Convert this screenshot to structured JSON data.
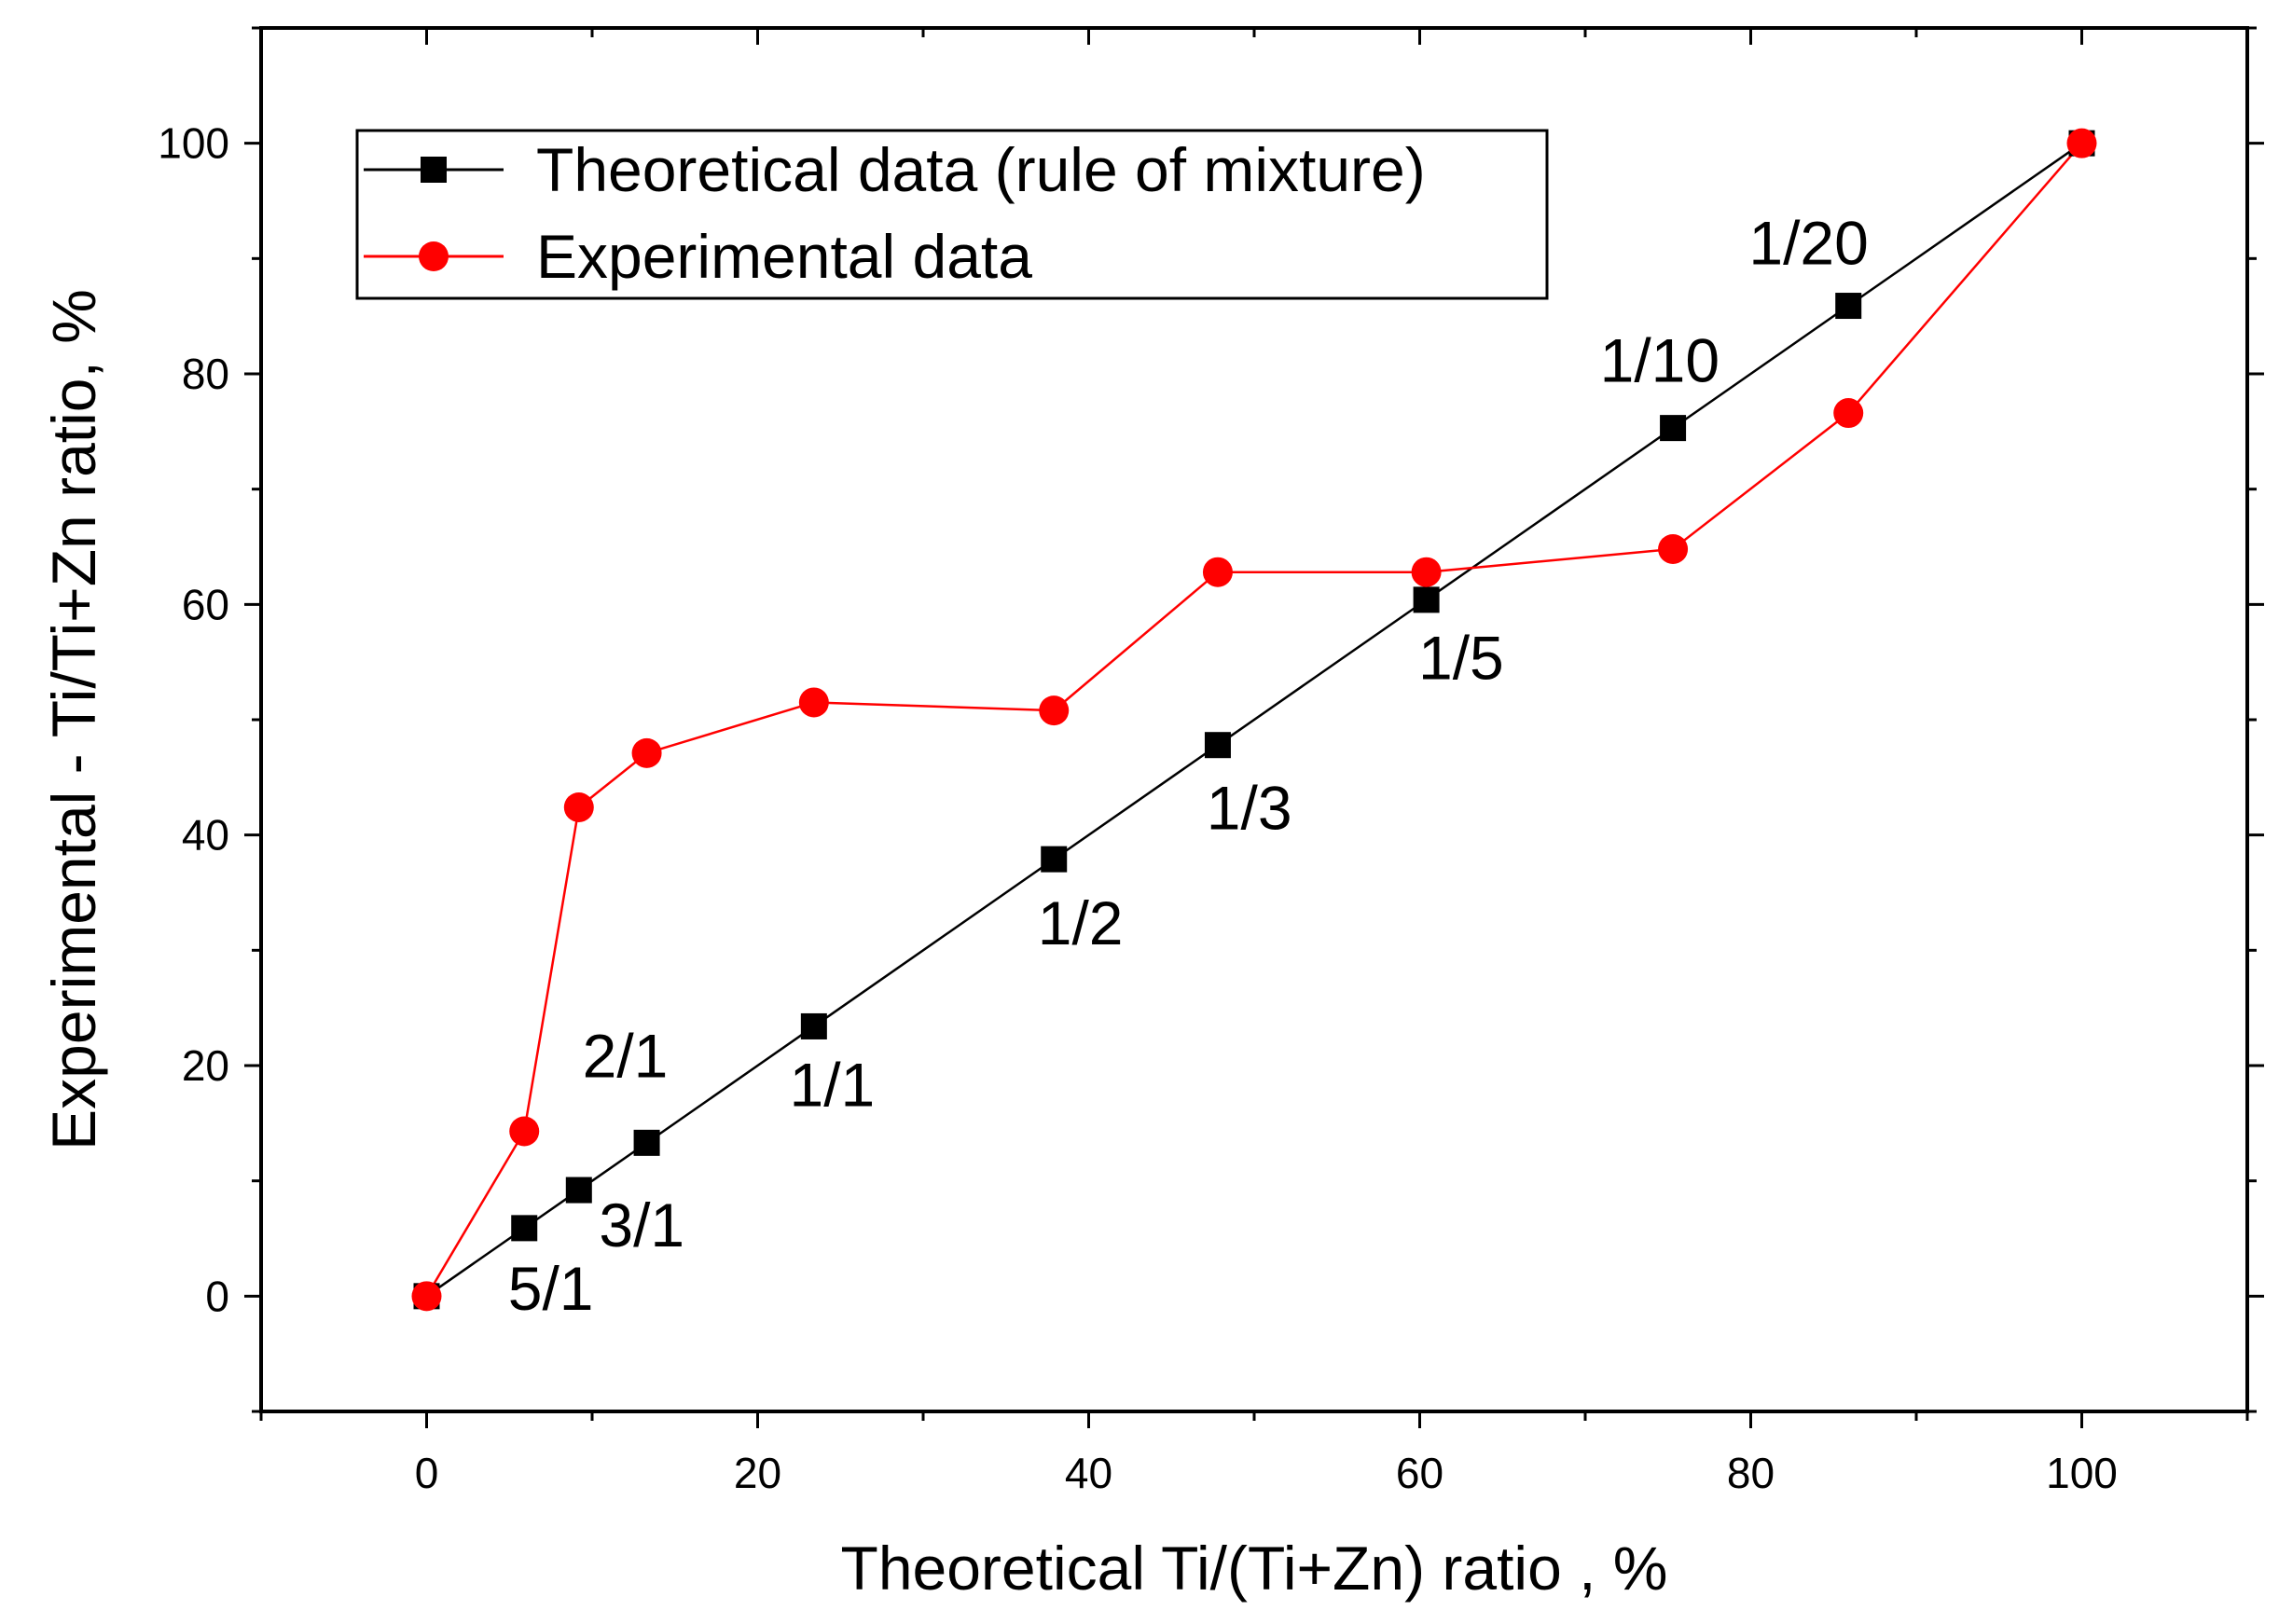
{
  "chart_data": {
    "type": "line",
    "title": "",
    "xlabel": "Theoretical Ti/(Ti+Zn) ratio , %",
    "ylabel": "Experimental - Ti/Ti+Zn ratio, %",
    "xlim": [
      -10,
      110
    ],
    "ylim": [
      -10,
      110
    ],
    "xticks": [
      0,
      20,
      40,
      60,
      80,
      100
    ],
    "yticks": [
      0,
      20,
      40,
      60,
      80,
      100
    ],
    "grid": false,
    "legend_position": "top-left",
    "series": [
      {
        "name": "Theoretical data (rule of mixture)",
        "color": "#000000",
        "marker": "square",
        "x": [
          0,
          5.9,
          9.2,
          13.3,
          23.4,
          37.9,
          47.8,
          60.4,
          75.3,
          85.9,
          100
        ],
        "y": [
          0,
          5.9,
          9.2,
          13.3,
          23.4,
          37.9,
          47.8,
          60.4,
          75.3,
          85.9,
          100
        ]
      },
      {
        "name": "Experimental data",
        "color": "#ff0000",
        "marker": "circle",
        "x": [
          0,
          5.9,
          9.2,
          13.3,
          23.4,
          37.9,
          47.8,
          60.4,
          75.3,
          85.9,
          100
        ],
        "y": [
          0,
          14.3,
          42.4,
          47.1,
          51.5,
          50.8,
          62.8,
          62.8,
          64.8,
          76.6,
          100
        ]
      }
    ],
    "annotations": [
      {
        "text": "5/1",
        "x": 7.5,
        "y": -1.2
      },
      {
        "text": "3/1",
        "x": 13.0,
        "y": 4.3
      },
      {
        "text": "2/1",
        "x": 12.0,
        "y": 19.0
      },
      {
        "text": "1/1",
        "x": 24.5,
        "y": 16.5
      },
      {
        "text": "1/2",
        "x": 39.5,
        "y": 30.5
      },
      {
        "text": "1/3",
        "x": 49.7,
        "y": 40.5
      },
      {
        "text": "1/5",
        "x": 62.5,
        "y": 53.5
      },
      {
        "text": "1/10",
        "x": 74.5,
        "y": 79.3
      },
      {
        "text": "1/20",
        "x": 83.5,
        "y": 89.5
      }
    ]
  }
}
